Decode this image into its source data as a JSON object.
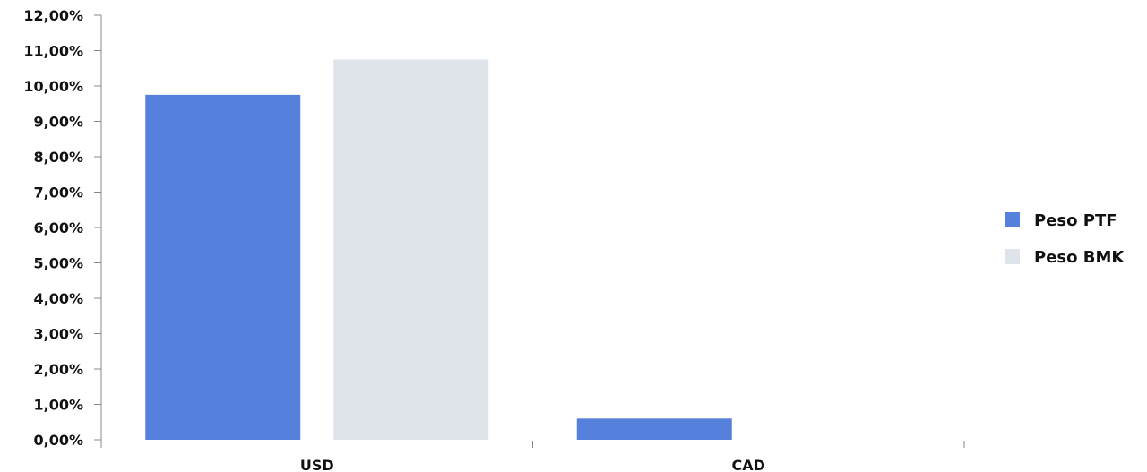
{
  "chart_data": {
    "type": "bar",
    "categories": [
      "USD",
      "CAD"
    ],
    "series": [
      {
        "name": "Peso PTF",
        "values": [
          9.75,
          0.6
        ],
        "color": "#5580DB"
      },
      {
        "name": "Peso BMK",
        "values": [
          10.75,
          0
        ],
        "color": "#DFE3EA"
      }
    ],
    "ylim": [
      0,
      12
    ],
    "yticks": [
      {
        "value": 0,
        "label": "0,00%"
      },
      {
        "value": 1,
        "label": "1,00%"
      },
      {
        "value": 2,
        "label": "2,00%"
      },
      {
        "value": 3,
        "label": "3,00%"
      },
      {
        "value": 4,
        "label": "4,00%"
      },
      {
        "value": 5,
        "label": "5,00%"
      },
      {
        "value": 6,
        "label": "6,00%"
      },
      {
        "value": 7,
        "label": "7,00%"
      },
      {
        "value": 8,
        "label": "8,00%"
      },
      {
        "value": 9,
        "label": "9,00%"
      },
      {
        "value": 10,
        "label": "10,00%"
      },
      {
        "value": 11,
        "label": "11,00%"
      },
      {
        "value": 12,
        "label": "12,00%"
      }
    ],
    "grid": false,
    "legend_position": "right",
    "axis_color": "#888888"
  }
}
